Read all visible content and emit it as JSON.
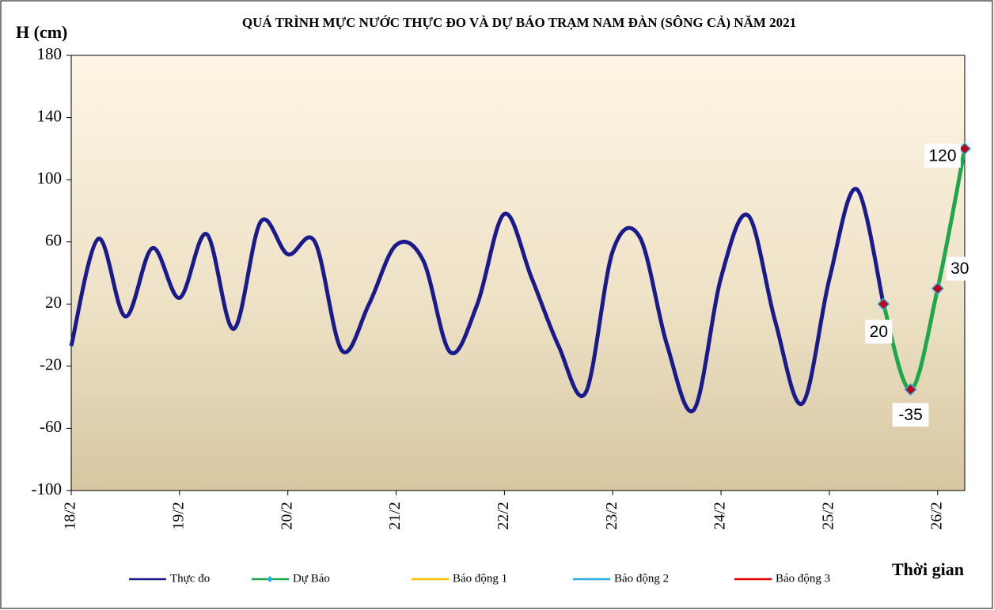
{
  "chart_data": {
    "type": "line",
    "title": "QUÁ TRÌNH MỰC NƯỚC THỰC ĐO VÀ DỰ BÁO TRẠM  NAM  ĐÀN (SÔNG CẢ) NĂM 2021",
    "y_label": "H (cm)",
    "x_label": "Thời gian",
    "xlim": [
      0,
      8.25
    ],
    "xticks": [
      {
        "value": 0,
        "label": "18/2"
      },
      {
        "value": 1,
        "label": "19/2"
      },
      {
        "value": 2,
        "label": "20/2"
      },
      {
        "value": 3,
        "label": "21/2"
      },
      {
        "value": 4,
        "label": "22/2"
      },
      {
        "value": 5,
        "label": "23/2"
      },
      {
        "value": 6,
        "label": "24/2"
      },
      {
        "value": 7,
        "label": "25/2"
      },
      {
        "value": 8,
        "label": "26/2"
      }
    ],
    "ylim": [
      -100,
      180
    ],
    "yticks": [
      -100,
      -60,
      -20,
      20,
      60,
      100,
      140,
      180
    ],
    "series": [
      {
        "name": "Thực đo",
        "color": "#1a1a8c",
        "x": [
          0,
          0.25,
          0.5,
          0.75,
          1,
          1.25,
          1.5,
          1.75,
          2,
          2.25,
          2.5,
          2.75,
          3,
          3.25,
          3.5,
          3.75,
          4,
          4.25,
          4.5,
          4.75,
          5,
          5.25,
          5.5,
          5.75,
          6,
          6.25,
          6.5,
          6.75,
          7,
          7.25,
          7.5
        ],
        "values": [
          -7,
          62,
          12,
          56,
          24,
          65,
          4,
          73,
          52,
          60,
          -10,
          20,
          58,
          48,
          -11,
          20,
          78,
          37,
          -7,
          -37,
          54,
          63,
          -6,
          -48,
          37,
          77,
          9,
          -44,
          36,
          94,
          20
        ]
      },
      {
        "name": "Dự Báo",
        "color": "#1fa84a",
        "marker_color": "#c0001a",
        "x": [
          7.5,
          7.75,
          8,
          8.25
        ],
        "values": [
          20,
          -35,
          30,
          120
        ],
        "data_labels": true
      },
      {
        "name": "Báo động 1",
        "color": "#ffc000"
      },
      {
        "name": "Báo động 2",
        "color": "#2ab0e0"
      },
      {
        "name": "Báo động 3",
        "color": "#e00000"
      }
    ]
  }
}
